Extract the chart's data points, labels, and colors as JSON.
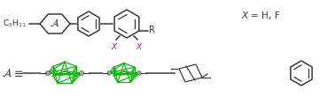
{
  "bg_color": "#ffffff",
  "dark_color": "#3a3a3a",
  "green_color": "#00bb00",
  "magenta_color": "#cc00cc",
  "gray_color": "#aaaaaa",
  "fig_width": 3.78,
  "fig_height": 1.18,
  "dpi": 100
}
